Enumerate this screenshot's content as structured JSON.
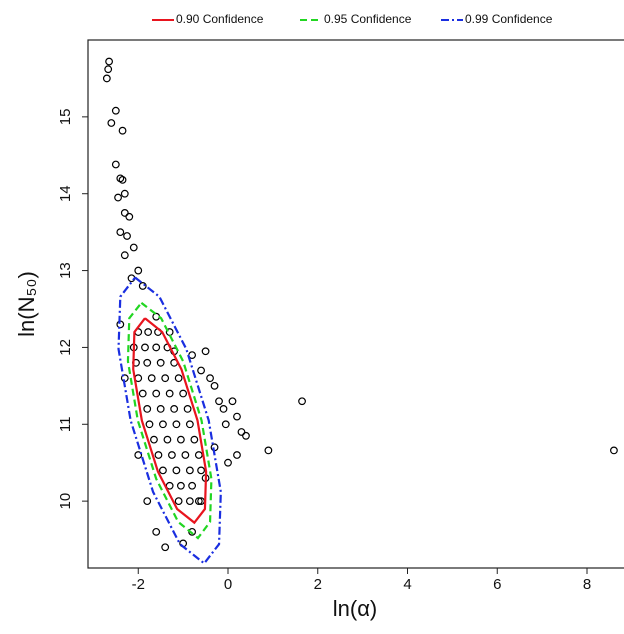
{
  "chart_data": {
    "type": "scatter",
    "xlabel": "ln(α)",
    "ylabel": "ln(N₅₀)",
    "xlim": [
      -3.12,
      8.78
    ],
    "ylim": [
      9.13,
      16.0
    ],
    "xticks": [
      -2,
      0,
      2,
      4,
      6,
      8
    ],
    "yticks": [
      10,
      11,
      12,
      13,
      14,
      15
    ],
    "grid": false,
    "legend": "top",
    "point_color": "#000000",
    "x": [
      -2.65,
      -2.67,
      -2.7,
      -2.6,
      -2.5,
      -2.35,
      -2.5,
      -2.4,
      -2.35,
      -2.3,
      -2.45,
      -2.3,
      -2.2,
      -2.4,
      -2.25,
      -2.1,
      -2.3,
      -2.0,
      -2.15,
      -1.9,
      -1.6,
      -1.3,
      -1.2,
      -0.8,
      -0.5,
      -0.6,
      -0.4,
      -0.3,
      -0.2,
      -0.1,
      0.1,
      0.2,
      -0.05,
      0.3,
      0.4,
      0.2,
      0.0,
      -0.3,
      -0.5,
      -0.6,
      -0.8,
      -1.0,
      -1.4,
      -1.6,
      -1.8,
      -2.0,
      -2.3,
      -2.4,
      0.9,
      1.65,
      8.6,
      -2.0,
      -1.78,
      -1.56,
      -2.1,
      -1.85,
      -1.6,
      -1.35,
      -2.05,
      -1.8,
      -1.5,
      -1.2,
      -2.0,
      -1.7,
      -1.4,
      -1.1,
      -1.9,
      -1.6,
      -1.3,
      -1.0,
      -1.8,
      -1.5,
      -1.2,
      -0.9,
      -1.75,
      -1.45,
      -1.15,
      -0.85,
      -1.65,
      -1.35,
      -1.05,
      -0.75,
      -1.55,
      -1.25,
      -0.95,
      -0.65,
      -1.45,
      -1.15,
      -0.85,
      -0.6,
      -1.3,
      -1.05,
      -0.8,
      -1.1,
      -0.85,
      -0.65
    ],
    "y": [
      15.72,
      15.62,
      15.5,
      14.92,
      15.08,
      14.82,
      14.38,
      14.2,
      14.18,
      14.0,
      13.95,
      13.75,
      13.7,
      13.5,
      13.45,
      13.3,
      13.2,
      13.0,
      12.9,
      12.8,
      12.4,
      12.2,
      11.95,
      11.9,
      11.95,
      11.7,
      11.6,
      11.5,
      11.3,
      11.2,
      11.3,
      11.1,
      11.0,
      10.9,
      10.85,
      10.6,
      10.5,
      10.7,
      10.3,
      10.0,
      9.6,
      9.45,
      9.4,
      9.6,
      10.0,
      10.6,
      11.6,
      12.3,
      10.66,
      11.3,
      10.66,
      12.2,
      12.2,
      12.2,
      12.0,
      12.0,
      12.0,
      12.0,
      11.8,
      11.8,
      11.8,
      11.8,
      11.6,
      11.6,
      11.6,
      11.6,
      11.4,
      11.4,
      11.4,
      11.4,
      11.2,
      11.2,
      11.2,
      11.2,
      11.0,
      11.0,
      11.0,
      11.0,
      10.8,
      10.8,
      10.8,
      10.8,
      10.6,
      10.6,
      10.6,
      10.6,
      10.4,
      10.4,
      10.4,
      10.4,
      10.2,
      10.2,
      10.2,
      10.0,
      10.0,
      10.0
    ],
    "series": [
      {
        "name": "0.90 Confidence",
        "color": "#e8141e",
        "dash": "solid",
        "x": [
          -1.85,
          -1.466,
          -1.038,
          -0.68,
          -0.488,
          -0.514,
          -0.75,
          -1.134,
          -1.562,
          -1.92,
          -2.112,
          -2.086,
          -1.85
        ],
        "y": [
          12.38,
          12.2,
          11.715,
          11.05,
          10.385,
          9.898,
          9.72,
          9.898,
          10.385,
          11.05,
          11.715,
          12.2,
          12.38
        ]
      },
      {
        "name": "0.95 Confidence",
        "color": "#22d622",
        "dash": "dashed",
        "x": [
          -1.93,
          -1.49,
          -1.0,
          -0.59,
          -0.37,
          -0.4,
          -0.67,
          -1.11,
          -1.6,
          -2.01,
          -2.23,
          -2.2,
          -1.93
        ],
        "y": [
          12.58,
          12.38,
          11.82,
          11.05,
          10.29,
          9.73,
          9.52,
          9.73,
          10.29,
          11.05,
          11.82,
          12.38,
          12.58
        ]
      },
      {
        "name": "0.99 Confidence",
        "color": "#1a2ee0",
        "dash": "dashdot",
        "x": [
          -2.07,
          -1.53,
          -0.93,
          -0.43,
          -0.16,
          -0.2,
          -0.53,
          -1.07,
          -1.67,
          -2.17,
          -2.44,
          -2.4,
          -2.07
        ],
        "y": [
          12.91,
          12.66,
          11.98,
          11.05,
          10.12,
          9.44,
          9.19,
          9.44,
          10.12,
          11.05,
          11.98,
          12.66,
          12.91
        ]
      }
    ]
  }
}
